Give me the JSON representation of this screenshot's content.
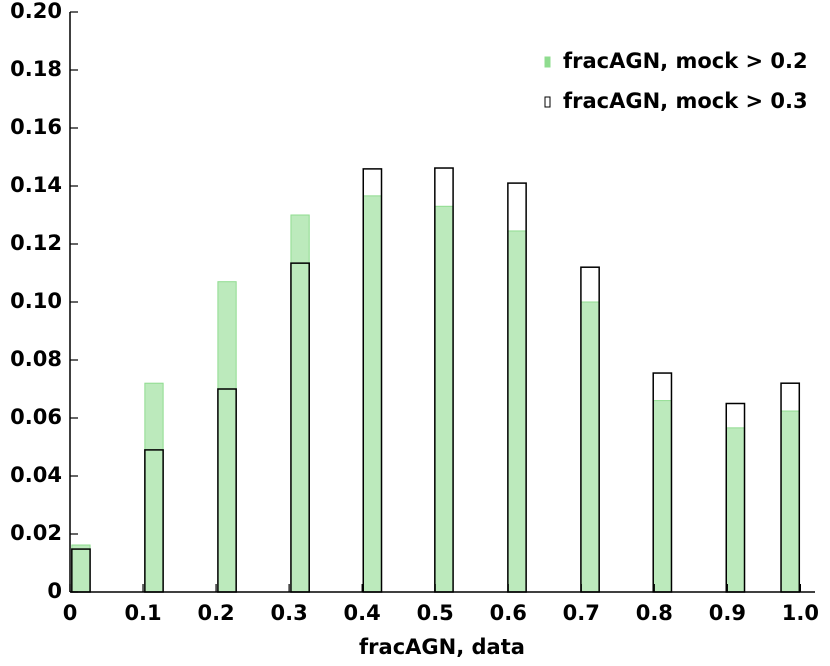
{
  "chart_data": {
    "type": "bar",
    "xlabel": "fracAGN, data",
    "x": [
      0.015,
      0.115,
      0.215,
      0.315,
      0.414,
      0.512,
      0.612,
      0.712,
      0.811,
      0.911,
      0.986
    ],
    "series": [
      {
        "name": "fracAGN, mock > 0.2",
        "color": "#8fdc8f",
        "histtype": "stepfilled",
        "values": [
          0.0162,
          0.072,
          0.107,
          0.13,
          0.1366,
          0.133,
          0.1245,
          0.1,
          0.066,
          0.0566,
          0.0624
        ]
      },
      {
        "name": "fracAGN, mock > 0.3",
        "color": "#000000",
        "histtype": "step",
        "values": [
          0.0148,
          0.049,
          0.07,
          0.1134,
          0.1459,
          0.1462,
          0.141,
          0.112,
          0.0755,
          0.065,
          0.072
        ]
      }
    ],
    "xlim": [
      0,
      1.02
    ],
    "xticks": [
      0,
      0.1,
      0.2,
      0.3,
      0.4,
      0.5,
      0.6,
      0.7,
      0.8,
      0.9,
      {
        "value": 1,
        "label": "1.0"
      }
    ],
    "ylim": [
      0,
      0.2
    ],
    "yticks": [
      0,
      0.02,
      0.04,
      0.06,
      0.08,
      {
        "value": 0.1,
        "label": "0.10"
      },
      0.12,
      0.14,
      0.16,
      0.18,
      {
        "value": 0.2,
        "label": "0.20"
      }
    ],
    "legend": "upper right"
  }
}
